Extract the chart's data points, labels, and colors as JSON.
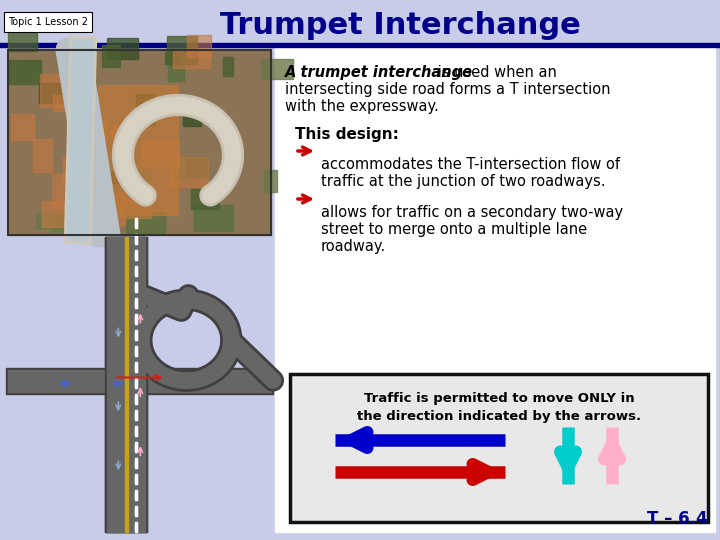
{
  "title": "Trumpet Interchange",
  "topic_label": "Topic 1 Lesson 2",
  "bg_color": "#c8cce8",
  "dark_blue_bar": "#000080",
  "title_color": "#00008B",
  "title_fontsize": 22,
  "body_bg": "#ffffff",
  "text_dark": "#000000",
  "text_navy": "#00008B",
  "para1_bold_italic": "A trumpet interchange",
  "para1_rest": " is used when an",
  "para1_line2": "intersecting side road forms a T intersection",
  "para1_line3": "with the expressway.",
  "this_design": "This design:",
  "bullet1_line1": "accommodates the T-intersection flow of",
  "bullet1_line2": "traffic at the junction of two roadways.",
  "bullet2_line1": "allows for traffic on a secondary two-way",
  "bullet2_line2": "street to merge onto a multiple lane",
  "bullet2_line3": "roadway.",
  "box_text1": "Traffic is permitted to move ONLY in",
  "box_text2": "the direction indicated by the arrows.",
  "footer": "T – 6.4",
  "arrow_blue_color": "#0000CC",
  "arrow_red_color": "#CC0000",
  "arrow_cyan_color": "#00CCCC",
  "arrow_pink_color": "#FFB0C8",
  "bullet_color": "#CC0000",
  "road_dark": "#555555",
  "road_mid": "#777777",
  "road_light": "#999999",
  "aerial_bg": "#7B6B3A",
  "aerial_green": "#4A6B3A",
  "aerial_red": "#C47040"
}
